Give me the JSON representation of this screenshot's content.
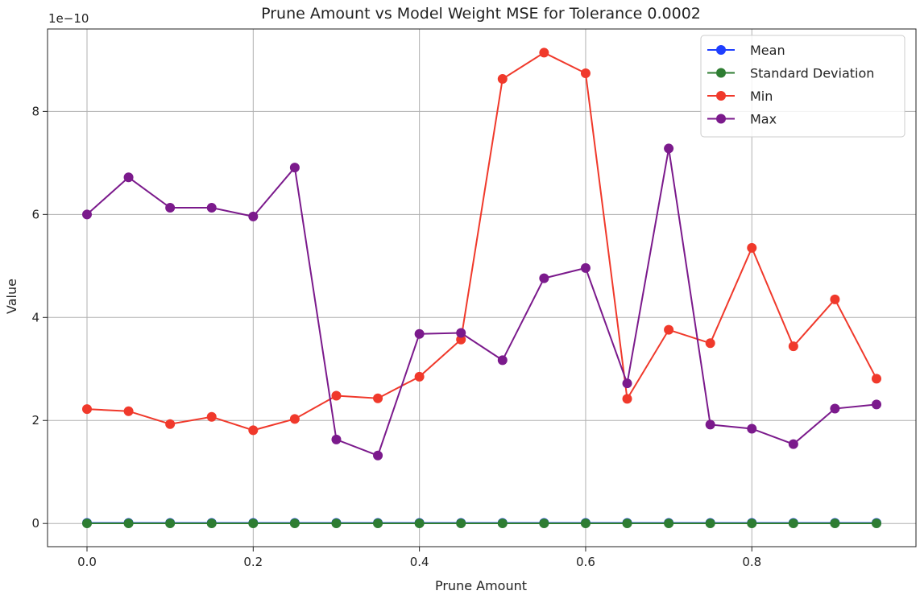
{
  "chart_data": {
    "type": "line",
    "title": "Prune Amount vs Model Weight MSE for Tolerance 0.0002",
    "xlabel": "Prune Amount",
    "ylabel": "Value",
    "y_offset_label": "1e−10",
    "xlim": [
      -0.0475,
      0.9975
    ],
    "ylim": [
      -0.45,
      9.6
    ],
    "xticks": [
      0.0,
      0.2,
      0.4,
      0.6,
      0.8
    ],
    "xtick_labels": [
      "0.0",
      "0.2",
      "0.4",
      "0.6",
      "0.8"
    ],
    "yticks": [
      0,
      2,
      4,
      6,
      8
    ],
    "ytick_labels": [
      "0",
      "2",
      "4",
      "6",
      "8"
    ],
    "grid": true,
    "legend_position": "top-right",
    "y_scale_note": "values in units of 1e-10",
    "x": [
      0.0,
      0.05,
      0.1,
      0.15,
      0.2,
      0.25,
      0.3,
      0.35,
      0.4,
      0.45,
      0.5,
      0.55,
      0.6,
      0.65,
      0.7,
      0.75,
      0.8,
      0.85,
      0.9,
      0.95
    ],
    "series": [
      {
        "name": "Mean",
        "color": "#1f3fff",
        "values": [
          0.012,
          0.012,
          0.012,
          0.012,
          0.012,
          0.012,
          0.012,
          0.012,
          0.012,
          0.012,
          0.012,
          0.012,
          0.012,
          0.012,
          0.012,
          0.012,
          0.012,
          0.012,
          0.012,
          0.012
        ]
      },
      {
        "name": "Standard Deviation",
        "color": "#2e7d32",
        "values": [
          0.004,
          0.004,
          0.004,
          0.004,
          0.004,
          0.004,
          0.004,
          0.004,
          0.004,
          0.004,
          0.004,
          0.004,
          0.004,
          0.004,
          0.004,
          0.004,
          0.004,
          0.004,
          0.004,
          0.004
        ]
      },
      {
        "name": "Min",
        "color": "#f0392b",
        "values": [
          2.22,
          2.18,
          1.93,
          2.07,
          1.81,
          2.03,
          2.48,
          2.43,
          2.85,
          3.57,
          8.63,
          9.14,
          8.74,
          2.42,
          3.76,
          3.5,
          5.35,
          3.44,
          4.35,
          2.81
        ]
      },
      {
        "name": "Max",
        "color": "#7b1a8c",
        "values": [
          6.0,
          6.72,
          6.13,
          6.13,
          5.96,
          6.91,
          1.63,
          1.32,
          3.68,
          3.7,
          3.17,
          4.76,
          4.96,
          2.72,
          7.28,
          1.92,
          1.84,
          1.54,
          2.23,
          2.31
        ]
      }
    ]
  }
}
